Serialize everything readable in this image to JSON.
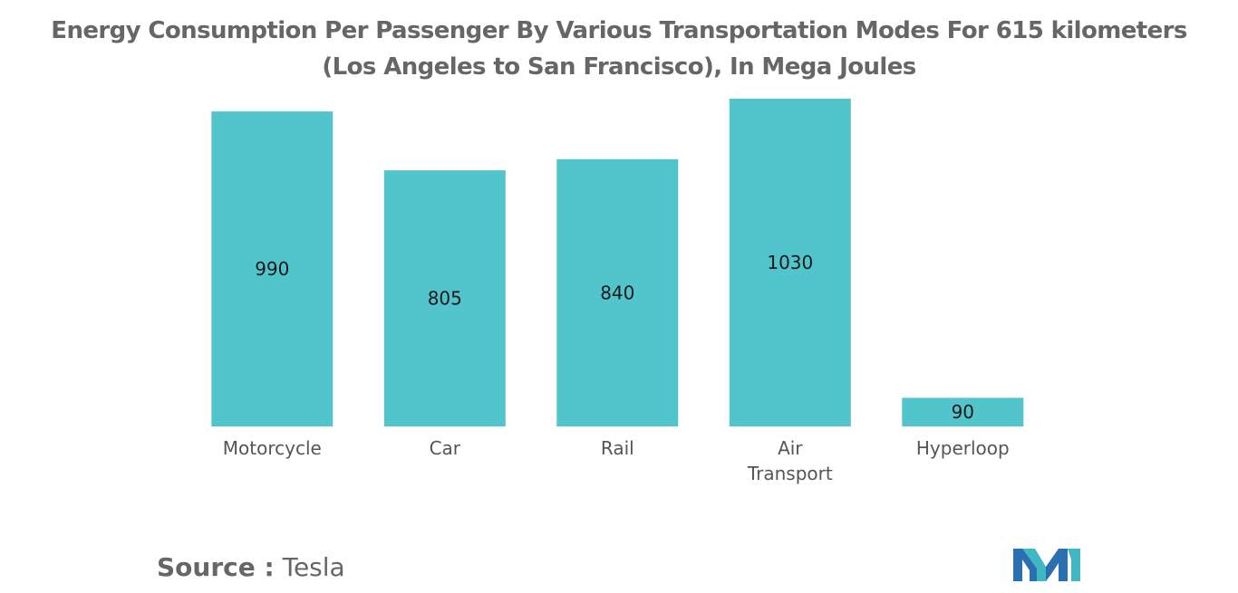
{
  "header": {
    "title_line1": "Energy Consumption Per Passenger By Various Transportation Modes For 615 kilometers",
    "title_line2": "(Los Angeles to San Francisco), In Mega Joules"
  },
  "footer": {
    "source_label": "Source :",
    "source_value": "Tesla",
    "logo_icon": "mordor-intelligence-logo-icon"
  },
  "chart_data": {
    "type": "bar",
    "title": "Energy Consumption Per Passenger By Various Transportation Modes For 615 kilometers (Los Angeles to San Francisco), In Mega Joules",
    "categories": [
      [
        "Motorcycle"
      ],
      [
        "Car"
      ],
      [
        "Rail"
      ],
      [
        "Air",
        "Transport"
      ],
      [
        "Hyperloop"
      ]
    ],
    "values": [
      990,
      805,
      840,
      1030,
      90
    ],
    "data_labels": [
      "990",
      "805",
      "840",
      "1030",
      "90"
    ],
    "xlabel": "",
    "ylabel": "",
    "ylim": [
      0,
      1030
    ],
    "grid": false,
    "legend": "none",
    "colors": {
      "bar": "#52C4CB",
      "label": "#1a1a1a",
      "axis_text": "#555555"
    }
  }
}
